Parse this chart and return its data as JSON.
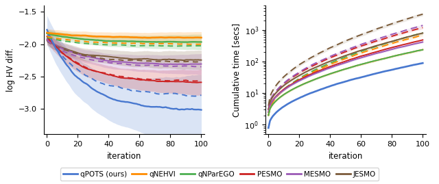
{
  "methods": [
    "qPOTS",
    "qNEHVI",
    "qNParEGO",
    "PESMO",
    "MESMO",
    "JESMO"
  ],
  "colors": {
    "qPOTS": "#4878CF",
    "qNEHVI": "#FF8C00",
    "qNParEGO": "#4CAF50",
    "PESMO": "#CC2222",
    "MESMO": "#9B59B6",
    "JESMO": "#7B5B3A"
  },
  "legend_labels": [
    "qPOTS (ours)",
    "qNEHVI",
    "qNParEGO",
    "PESMO",
    "MESMO",
    "JESMO"
  ],
  "left_ylabel": "log HV diff.",
  "right_ylabel": "Cumulative time [secs]",
  "xlabel": "iteration",
  "left_ylim": [
    -3.4,
    -1.4
  ],
  "left_yticks": [
    -3.0,
    -2.5,
    -2.0,
    -1.5
  ],
  "xticks": [
    0,
    20,
    40,
    60,
    80,
    100
  ],
  "xlim": [
    -2,
    102
  ]
}
